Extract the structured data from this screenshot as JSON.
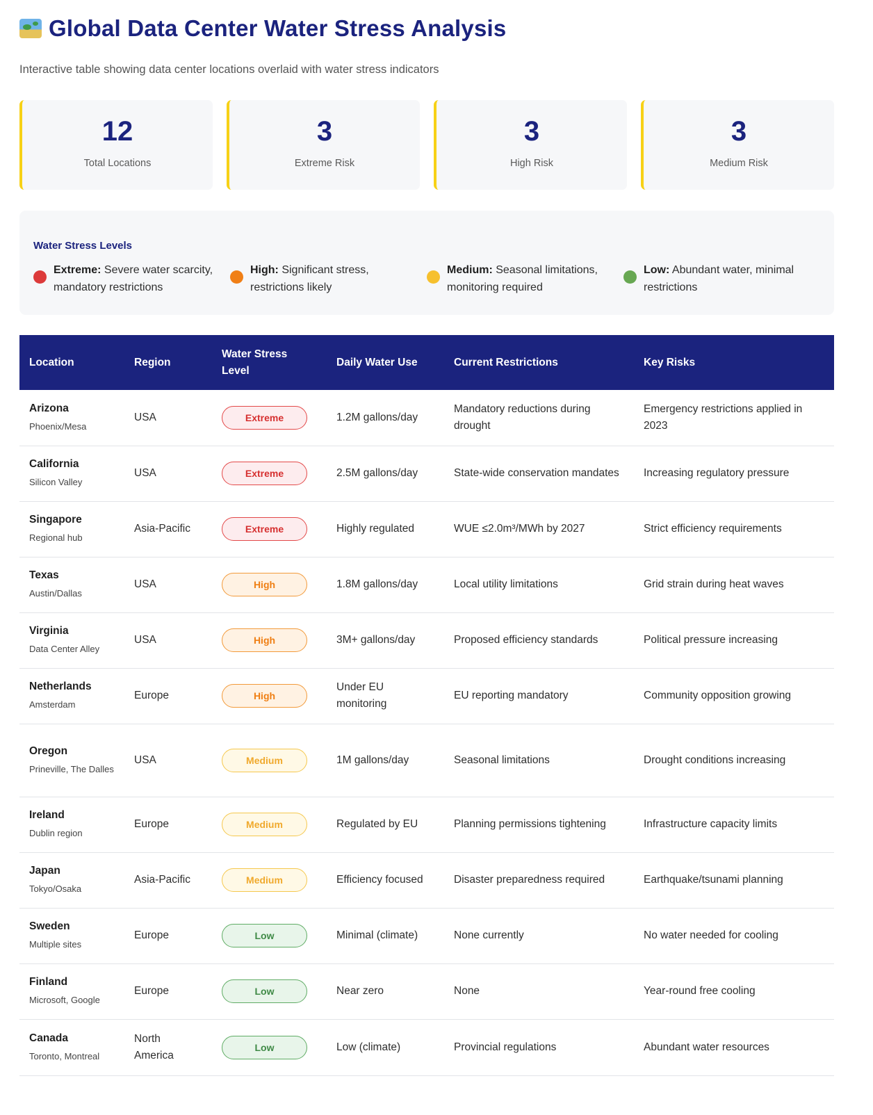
{
  "header": {
    "title": "Global Data Center Water Stress Analysis",
    "subtitle": "Interactive table showing data center locations overlaid with water stress indicators"
  },
  "stats": [
    {
      "value": "12",
      "label": "Total Locations"
    },
    {
      "value": "3",
      "label": "Extreme Risk"
    },
    {
      "value": "3",
      "label": "High Risk"
    },
    {
      "value": "3",
      "label": "Medium Risk"
    }
  ],
  "legend": {
    "title": "Water Stress Levels",
    "items": [
      {
        "name": "Extreme:",
        "desc": " Severe water scarcity, mandatory restrictions",
        "color": "#dc3a3a"
      },
      {
        "name": "High:",
        "desc": " Significant stress, restrictions likely",
        "color": "#f07f16"
      },
      {
        "name": "Medium:",
        "desc": " Seasonal limitations, monitoring required",
        "color": "#f6c02e"
      },
      {
        "name": "Low:",
        "desc": " Abundant water, minimal restrictions",
        "color": "#67a752"
      }
    ]
  },
  "table": {
    "headers": [
      "Location",
      "Region",
      "Water Stress Level",
      "Daily Water Use",
      "Current Restrictions",
      "Key Risks"
    ],
    "rows": [
      {
        "location": "Arizona",
        "sub": "Phoenix/Mesa",
        "region": "USA",
        "level": "Extreme",
        "use": "1.2M gallons/day",
        "restrictions": "Mandatory reductions during drought",
        "risks": "Emergency restrictions applied in 2023"
      },
      {
        "location": "California",
        "sub": "Silicon Valley",
        "region": "USA",
        "level": "Extreme",
        "use": "2.5M gallons/day",
        "restrictions": "State-wide conservation mandates",
        "risks": "Increasing regulatory pressure"
      },
      {
        "location": "Singapore",
        "sub": "Regional hub",
        "region": "Asia-Pacific",
        "level": "Extreme",
        "use": "Highly regulated",
        "restrictions": "WUE ≤2.0m³/MWh by 2027",
        "risks": "Strict efficiency requirements"
      },
      {
        "location": "Texas",
        "sub": "Austin/Dallas",
        "region": "USA",
        "level": "High",
        "use": "1.8M gallons/day",
        "restrictions": "Local utility limitations",
        "risks": "Grid strain during heat waves"
      },
      {
        "location": "Virginia",
        "sub": "Data Center Alley",
        "region": "USA",
        "level": "High",
        "use": "3M+ gallons/day",
        "restrictions": "Proposed efficiency standards",
        "risks": "Political pressure increasing"
      },
      {
        "location": "Netherlands",
        "sub": "Amsterdam",
        "region": "Europe",
        "level": "High",
        "use": "Under EU monitoring",
        "restrictions": "EU reporting mandatory",
        "risks": "Community opposition growing"
      },
      {
        "location": "Oregon",
        "sub": "Prineville, The Dalles",
        "region": "USA",
        "level": "Medium",
        "use": "1M gallons/day",
        "restrictions": "Seasonal limitations",
        "risks": "Drought conditions increasing"
      },
      {
        "location": "Ireland",
        "sub": "Dublin region",
        "region": "Europe",
        "level": "Medium",
        "use": "Regulated by EU",
        "restrictions": "Planning permissions tightening",
        "risks": "Infrastructure capacity limits"
      },
      {
        "location": "Japan",
        "sub": "Tokyo/Osaka",
        "region": "Asia-Pacific",
        "level": "Medium",
        "use": "Efficiency focused",
        "restrictions": "Disaster preparedness required",
        "risks": "Earthquake/tsunami planning"
      },
      {
        "location": "Sweden",
        "sub": "Multiple sites",
        "region": "Europe",
        "level": "Low",
        "use": "Minimal (climate)",
        "restrictions": "None currently",
        "risks": "No water needed for cooling"
      },
      {
        "location": "Finland",
        "sub": "Microsoft, Google",
        "region": "Europe",
        "level": "Low",
        "use": "Near zero",
        "restrictions": "None",
        "risks": "Year-round free cooling"
      },
      {
        "location": "Canada",
        "sub": "Toronto, Montreal",
        "region": "North America",
        "level": "Low",
        "use": "Low (climate)",
        "restrictions": "Provincial regulations",
        "risks": "Abundant water resources"
      }
    ]
  }
}
